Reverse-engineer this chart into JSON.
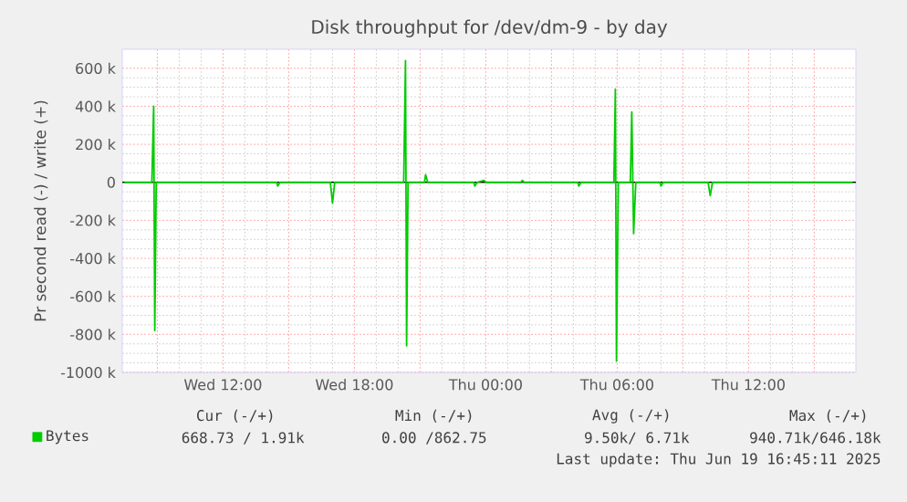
{
  "chart_data": {
    "type": "line",
    "title": "Disk throughput for /dev/dm-9 - by day",
    "ylabel": "Pr second read (-) / write (+)",
    "x": [
      "2025-06-18T07:30",
      "2025-06-18T08:45",
      "2025-06-18T08:50",
      "2025-06-18T08:53",
      "2025-06-18T08:57",
      "2025-06-18T14:27",
      "2025-06-18T14:30",
      "2025-06-18T14:36",
      "2025-06-18T16:54",
      "2025-06-18T17:00",
      "2025-06-18T17:06",
      "2025-06-18T20:15",
      "2025-06-18T20:20",
      "2025-06-18T20:23",
      "2025-06-18T20:27",
      "2025-06-18T21:12",
      "2025-06-18T21:15",
      "2025-06-18T21:21",
      "2025-06-18T23:27",
      "2025-06-18T23:30",
      "2025-06-18T23:36",
      "2025-06-18T23:55",
      "2025-06-19T00:00",
      "2025-06-19T01:36",
      "2025-06-19T01:40",
      "2025-06-19T01:45",
      "2025-06-19T04:12",
      "2025-06-19T04:15",
      "2025-06-19T04:21",
      "2025-06-19T05:51",
      "2025-06-19T05:55",
      "2025-06-19T05:58",
      "2025-06-19T06:03",
      "2025-06-19T06:36",
      "2025-06-19T06:40",
      "2025-06-19T06:45",
      "2025-06-19T06:51",
      "2025-06-19T07:57",
      "2025-06-19T08:00",
      "2025-06-19T08:06",
      "2025-06-19T10:09",
      "2025-06-19T10:15",
      "2025-06-19T10:21",
      "2025-06-19T16:45"
    ],
    "series": [
      {
        "name": "Bytes",
        "color": "#00cc00",
        "values": [
          0,
          0,
          400,
          -780,
          0,
          0,
          -20,
          0,
          0,
          -110,
          0,
          0,
          640,
          -860,
          0,
          0,
          40,
          0,
          0,
          -20,
          0,
          10,
          0,
          0,
          10,
          0,
          0,
          -20,
          0,
          0,
          490,
          -940,
          0,
          0,
          370,
          -270,
          0,
          0,
          -20,
          0,
          0,
          -70,
          0,
          0
        ]
      }
    ],
    "xlim": [
      "2025-06-18T07:24",
      "2025-06-19T16:54"
    ],
    "ylim": [
      -1000,
      700
    ],
    "xticks": [
      {
        "value": "2025-06-18T09:00",
        "label": null
      },
      {
        "value": "2025-06-18T12:00",
        "label": "Wed 12:00"
      },
      {
        "value": "2025-06-18T15:00",
        "label": null
      },
      {
        "value": "2025-06-18T18:00",
        "label": "Wed 18:00"
      },
      {
        "value": "2025-06-18T21:00",
        "label": null
      },
      {
        "value": "2025-06-19T00:00",
        "label": "Thu 00:00"
      },
      {
        "value": "2025-06-19T03:00",
        "label": null
      },
      {
        "value": "2025-06-19T06:00",
        "label": "Thu 06:00"
      },
      {
        "value": "2025-06-19T09:00",
        "label": null
      },
      {
        "value": "2025-06-19T12:00",
        "label": "Thu 12:00"
      },
      {
        "value": "2025-06-19T15:00",
        "label": null
      }
    ],
    "yticks": [
      {
        "value": -1000,
        "label": "-1000 k"
      },
      {
        "value": -800,
        "label": "-800 k"
      },
      {
        "value": -600,
        "label": "-600 k"
      },
      {
        "value": -400,
        "label": "-400 k"
      },
      {
        "value": -200,
        "label": "-200 k"
      },
      0,
      {
        "value": 200,
        "label": "200 k"
      },
      {
        "value": 400,
        "label": "400 k"
      },
      {
        "value": 600,
        "label": "600 k"
      }
    ],
    "ref_lines": [
      {
        "axis": "y",
        "value": 0,
        "color": "#000000"
      }
    ],
    "grid": true,
    "legend": "bottom left",
    "line_style": "solid",
    "annotations": [
      "Cur (-/+)",
      "Min (-/+)",
      "Avg (-/+)",
      "Max (-/+)",
      "668.73 /  1.91k",
      "0.00 /862.75",
      "9.50k/  6.71k",
      "940.71k/646.18k",
      "Last update: Thu Jun 19 16:45:11 2025"
    ]
  }
}
